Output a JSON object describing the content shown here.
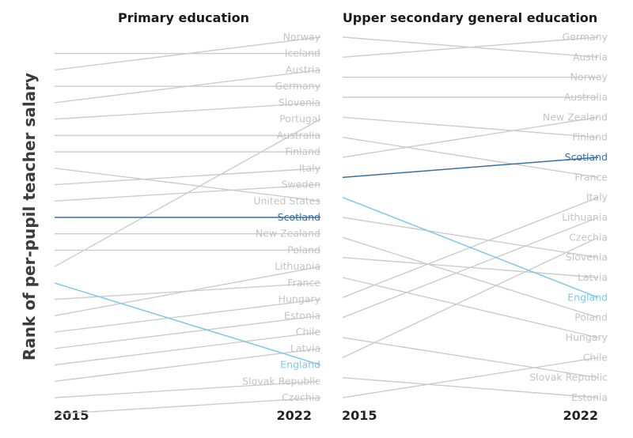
{
  "chart_data": {
    "type": "slope",
    "ylabel": "Rank of per-pupil teacher salary",
    "x_labels": [
      "2015",
      "2022"
    ],
    "colors": {
      "default": "#cccccc",
      "label_default": "#c4c4c4",
      "Scotland": "#3a6fa8",
      "England": "#7fc8ea"
    },
    "panels": [
      {
        "title": "Primary education",
        "items": [
          {
            "name": "Norway",
            "rank_2015": 3,
            "rank_2022": 1
          },
          {
            "name": "Iceland",
            "rank_2015": 2,
            "rank_2022": 2
          },
          {
            "name": "Austria",
            "rank_2015": 5,
            "rank_2022": 3
          },
          {
            "name": "Germany",
            "rank_2015": 4,
            "rank_2022": 4
          },
          {
            "name": "Slovenia",
            "rank_2015": 6,
            "rank_2022": 5
          },
          {
            "name": "Portugal",
            "rank_2015": 15,
            "rank_2022": 6
          },
          {
            "name": "Australia",
            "rank_2015": 7,
            "rank_2022": 7
          },
          {
            "name": "Finland",
            "rank_2015": 8,
            "rank_2022": 8
          },
          {
            "name": "Italy",
            "rank_2015": 10,
            "rank_2022": 9
          },
          {
            "name": "Sweden",
            "rank_2015": 11,
            "rank_2022": 10
          },
          {
            "name": "United States",
            "rank_2015": 9,
            "rank_2022": 11
          },
          {
            "name": "Scotland",
            "rank_2015": 12,
            "rank_2022": 12
          },
          {
            "name": "New Zealand",
            "rank_2015": 13,
            "rank_2022": 13
          },
          {
            "name": "Poland",
            "rank_2015": 14,
            "rank_2022": 14
          },
          {
            "name": "Lithuania",
            "rank_2015": 18,
            "rank_2022": 15
          },
          {
            "name": "France",
            "rank_2015": 17,
            "rank_2022": 16
          },
          {
            "name": "Hungary",
            "rank_2015": 19,
            "rank_2022": 17
          },
          {
            "name": "Estonia",
            "rank_2015": 20,
            "rank_2022": 18
          },
          {
            "name": "Chile",
            "rank_2015": 21,
            "rank_2022": 19
          },
          {
            "name": "Latvia",
            "rank_2015": 22,
            "rank_2022": 20
          },
          {
            "name": "England",
            "rank_2015": 16,
            "rank_2022": 21
          },
          {
            "name": "Slovak Republic",
            "rank_2015": 23,
            "rank_2022": 22
          },
          {
            "name": "Czechia",
            "rank_2015": 24,
            "rank_2022": 23
          }
        ]
      },
      {
        "title": "Upper secondary general education",
        "items": [
          {
            "name": "Germany",
            "rank_2015": 2,
            "rank_2022": 1
          },
          {
            "name": "Austria",
            "rank_2015": 1,
            "rank_2022": 2
          },
          {
            "name": "Norway",
            "rank_2015": 3,
            "rank_2022": 3
          },
          {
            "name": "Australia",
            "rank_2015": 4,
            "rank_2022": 4
          },
          {
            "name": "New Zealand",
            "rank_2015": 7,
            "rank_2022": 5
          },
          {
            "name": "Finland",
            "rank_2015": 5,
            "rank_2022": 6
          },
          {
            "name": "Scotland",
            "rank_2015": 8,
            "rank_2022": 7
          },
          {
            "name": "France",
            "rank_2015": 6,
            "rank_2022": 8
          },
          {
            "name": "Italy",
            "rank_2015": 14,
            "rank_2022": 9
          },
          {
            "name": "Lithuania",
            "rank_2015": 15,
            "rank_2022": 10
          },
          {
            "name": "Czechia",
            "rank_2015": 17,
            "rank_2022": 11
          },
          {
            "name": "Slovenia",
            "rank_2015": 10,
            "rank_2022": 12
          },
          {
            "name": "Latvia",
            "rank_2015": 12,
            "rank_2022": 13
          },
          {
            "name": "England",
            "rank_2015": 9,
            "rank_2022": 14
          },
          {
            "name": "Poland",
            "rank_2015": 11,
            "rank_2022": 15
          },
          {
            "name": "Hungary",
            "rank_2015": 13,
            "rank_2022": 16
          },
          {
            "name": "Chile",
            "rank_2015": 19,
            "rank_2022": 17
          },
          {
            "name": "Slovak Republic",
            "rank_2015": 16,
            "rank_2022": 18
          },
          {
            "name": "Estonia",
            "rank_2015": 18,
            "rank_2022": 19
          }
        ]
      }
    ]
  }
}
